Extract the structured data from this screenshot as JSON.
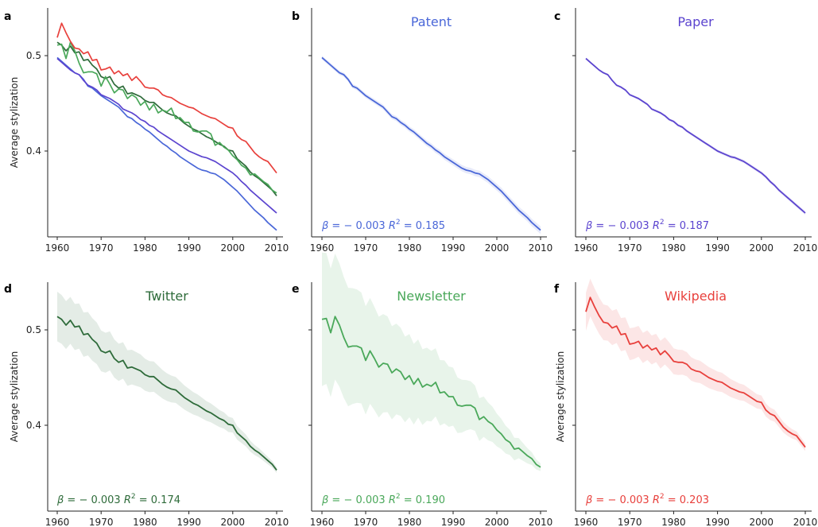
{
  "figure": {
    "panel_letters": [
      "a",
      "b",
      "c",
      "d",
      "e",
      "f"
    ],
    "ylabel": "Average stylization"
  },
  "colors": {
    "Patent": "#4a67d8",
    "Paper": "#5b44cf",
    "Twitter": "#2e6b3a",
    "Newsletter": "#4aa85a",
    "Wikipedia": "#e8403c",
    "axis": "#222222"
  },
  "chart_data": [
    {
      "panel": "a",
      "type": "line",
      "title": "",
      "xlabel": "",
      "ylabel": "Average stylization",
      "xlim": [
        1958,
        2011
      ],
      "ylim": [
        0.31,
        0.55
      ],
      "xticks": [
        1960,
        1970,
        1980,
        1990,
        2000,
        2010
      ],
      "yticks": [
        0.4,
        0.5
      ],
      "grid": false,
      "x": [
        1960,
        1961,
        1962,
        1963,
        1964,
        1965,
        1966,
        1967,
        1968,
        1969,
        1970,
        1971,
        1972,
        1973,
        1974,
        1975,
        1976,
        1977,
        1978,
        1979,
        1980,
        1981,
        1982,
        1983,
        1984,
        1985,
        1986,
        1987,
        1988,
        1989,
        1990,
        1991,
        1992,
        1993,
        1994,
        1995,
        1996,
        1997,
        1998,
        1999,
        2000,
        2001,
        2002,
        2003,
        2004,
        2005,
        2006,
        2007,
        2008,
        2009,
        2010
      ],
      "series": [
        {
          "name": "Patent",
          "values": [
            0.498,
            0.494,
            0.49,
            0.486,
            0.482,
            0.48,
            0.475,
            0.468,
            0.466,
            0.462,
            0.458,
            0.455,
            0.452,
            0.449,
            0.446,
            0.441,
            0.436,
            0.434,
            0.43,
            0.427,
            0.423,
            0.42,
            0.416,
            0.412,
            0.408,
            0.405,
            0.401,
            0.398,
            0.394,
            0.391,
            0.388,
            0.385,
            0.382,
            0.38,
            0.379,
            0.377,
            0.376,
            0.373,
            0.37,
            0.366,
            0.362,
            0.358,
            0.353,
            0.348,
            0.343,
            0.338,
            0.334,
            0.33,
            0.325,
            0.321,
            0.317
          ]
        },
        {
          "name": "Paper",
          "values": [
            0.497,
            0.493,
            0.489,
            0.485,
            0.482,
            0.48,
            0.474,
            0.469,
            0.467,
            0.464,
            0.459,
            0.457,
            0.455,
            0.452,
            0.449,
            0.444,
            0.442,
            0.44,
            0.437,
            0.433,
            0.431,
            0.427,
            0.425,
            0.421,
            0.418,
            0.415,
            0.412,
            0.409,
            0.406,
            0.403,
            0.4,
            0.398,
            0.396,
            0.394,
            0.393,
            0.391,
            0.389,
            0.386,
            0.383,
            0.38,
            0.377,
            0.373,
            0.368,
            0.364,
            0.359,
            0.355,
            0.351,
            0.347,
            0.343,
            0.339,
            0.335
          ]
        },
        {
          "name": "Twitter",
          "values": [
            0.514,
            0.511,
            0.505,
            0.51,
            0.503,
            0.504,
            0.495,
            0.496,
            0.49,
            0.486,
            0.478,
            0.476,
            0.478,
            0.47,
            0.466,
            0.468,
            0.46,
            0.461,
            0.459,
            0.457,
            0.453,
            0.451,
            0.451,
            0.447,
            0.443,
            0.44,
            0.438,
            0.437,
            0.433,
            0.429,
            0.426,
            0.423,
            0.421,
            0.418,
            0.415,
            0.413,
            0.41,
            0.407,
            0.405,
            0.401,
            0.4,
            0.392,
            0.388,
            0.384,
            0.378,
            0.374,
            0.371,
            0.367,
            0.363,
            0.359,
            0.353
          ]
        },
        {
          "name": "Newsletter",
          "values": [
            0.511,
            0.512,
            0.497,
            0.514,
            0.505,
            0.492,
            0.482,
            0.483,
            0.483,
            0.481,
            0.468,
            0.478,
            0.47,
            0.461,
            0.465,
            0.464,
            0.455,
            0.459,
            0.456,
            0.448,
            0.452,
            0.443,
            0.449,
            0.44,
            0.443,
            0.441,
            0.445,
            0.434,
            0.435,
            0.43,
            0.43,
            0.421,
            0.42,
            0.421,
            0.421,
            0.418,
            0.406,
            0.409,
            0.404,
            0.401,
            0.395,
            0.391,
            0.385,
            0.382,
            0.375,
            0.376,
            0.372,
            0.368,
            0.365,
            0.359,
            0.356
          ]
        },
        {
          "name": "Wikipedia",
          "values": [
            0.519,
            0.534,
            0.524,
            0.515,
            0.508,
            0.507,
            0.502,
            0.504,
            0.495,
            0.496,
            0.485,
            0.486,
            0.488,
            0.481,
            0.484,
            0.479,
            0.481,
            0.474,
            0.478,
            0.473,
            0.467,
            0.466,
            0.466,
            0.464,
            0.459,
            0.457,
            0.456,
            0.453,
            0.45,
            0.448,
            0.446,
            0.445,
            0.442,
            0.439,
            0.437,
            0.435,
            0.434,
            0.431,
            0.428,
            0.425,
            0.424,
            0.416,
            0.412,
            0.41,
            0.404,
            0.398,
            0.394,
            0.391,
            0.389,
            0.383,
            0.377
          ]
        }
      ]
    },
    {
      "panel": "b",
      "type": "area",
      "title": "Patent",
      "source": "Patent",
      "xlabel": "",
      "ylabel": "",
      "ylim": [
        0.31,
        0.55
      ],
      "xlim": [
        1958,
        2011
      ],
      "band_halfwidth": [
        0.002,
        0.004
      ],
      "annotation": {
        "beta": "β = − 0.003",
        "r2_label": "R",
        "r2_sup": "2",
        "r2_value": " = 0.185"
      }
    },
    {
      "panel": "c",
      "type": "area",
      "title": "Paper",
      "source": "Paper",
      "xlabel": "",
      "ylabel": "",
      "ylim": [
        0.31,
        0.55
      ],
      "xlim": [
        1958,
        2011
      ],
      "band_halfwidth": [
        0.001,
        0.002
      ],
      "annotation": {
        "beta": "β = − 0.003",
        "r2_label": "R",
        "r2_sup": "2",
        "r2_value": " = 0.187"
      }
    },
    {
      "panel": "d",
      "type": "area",
      "title": "Twitter",
      "source": "Twitter",
      "xlabel": "",
      "ylabel": "Average stylization",
      "ylim": [
        0.31,
        0.55
      ],
      "xlim": [
        1958,
        2011
      ],
      "band_halfwidth": [
        0.026,
        0.003
      ],
      "annotation": {
        "beta": "β = − 0.003",
        "r2_label": "R",
        "r2_sup": "2",
        "r2_value": " = 0.174"
      }
    },
    {
      "panel": "e",
      "type": "area",
      "title": "Newsletter",
      "source": "Newsletter",
      "xlabel": "",
      "ylabel": "",
      "ylim": [
        0.31,
        0.55
      ],
      "xlim": [
        1958,
        2011
      ],
      "band_halfwidth": [
        0.07,
        0.004
      ],
      "annotation": {
        "beta": "β = − 0.003",
        "r2_label": "R",
        "r2_sup": "2",
        "r2_value": " = 0.190"
      }
    },
    {
      "panel": "f",
      "type": "area",
      "title": "Wikipedia",
      "source": "Wikipedia",
      "xlabel": "",
      "ylabel": "Average stylization",
      "ylim": [
        0.31,
        0.55
      ],
      "xlim": [
        1958,
        2011
      ],
      "band_halfwidth": [
        0.02,
        0.004
      ],
      "annotation": {
        "beta": "β = − 0.003",
        "r2_label": "R",
        "r2_sup": "2",
        "r2_value": " = 0.203"
      }
    }
  ]
}
